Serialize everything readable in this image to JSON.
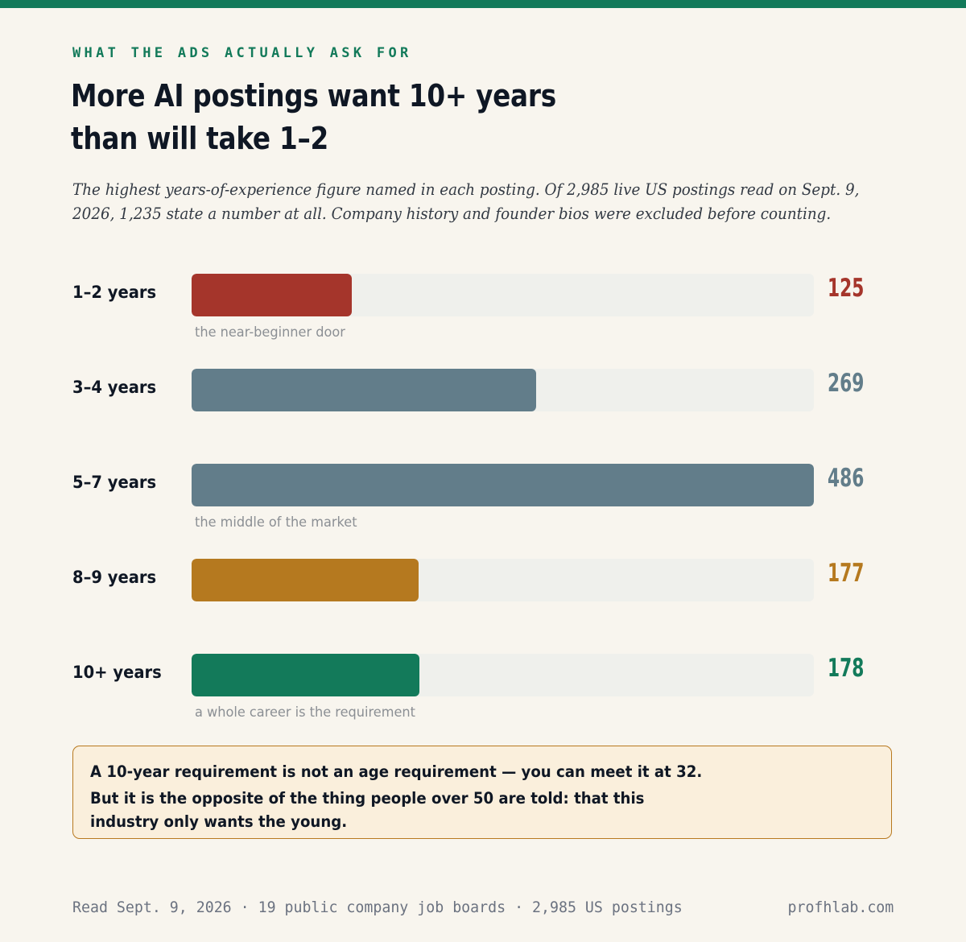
{
  "kicker": "WHAT THE ADS ACTUALLY ASK FOR",
  "title_lines": [
    "More AI postings want 10+ years",
    "than will take 1–2"
  ],
  "subtitle": "The highest years-of-experience figure named in each posting. Of 2,985 live US postings read on Sept. 9, 2026, 1,235 state a number at all. Company history and founder bios were excluded before counting.",
  "chart_data": {
    "type": "bar",
    "orientation": "horizontal",
    "title": "More AI postings want 10+ years than will take 1–2",
    "categories": [
      "1–2 years",
      "3–4 years",
      "5–7 years",
      "8–9 years",
      "10+ years"
    ],
    "values": [
      125,
      269,
      486,
      177,
      178
    ],
    "colors": [
      "#a5352b",
      "#627d8a",
      "#627d8a",
      "#b5791f",
      "#137a5a"
    ],
    "notes": [
      "the near-beginner door",
      "",
      "the middle of the market",
      "",
      "a whole career is the requirement"
    ],
    "xlim": [
      0,
      486
    ],
    "grid": false
  },
  "callout": {
    "line1": "A 10-year requirement is not an age requirement — you can meet it at 32.",
    "line2": "But it is the opposite of the thing people over 50 are told: that this industry only wants the young."
  },
  "footer": {
    "source": "Read Sept. 9, 2026 · 19 public company job boards · 2,985 US postings",
    "site": "profhlab.com"
  }
}
